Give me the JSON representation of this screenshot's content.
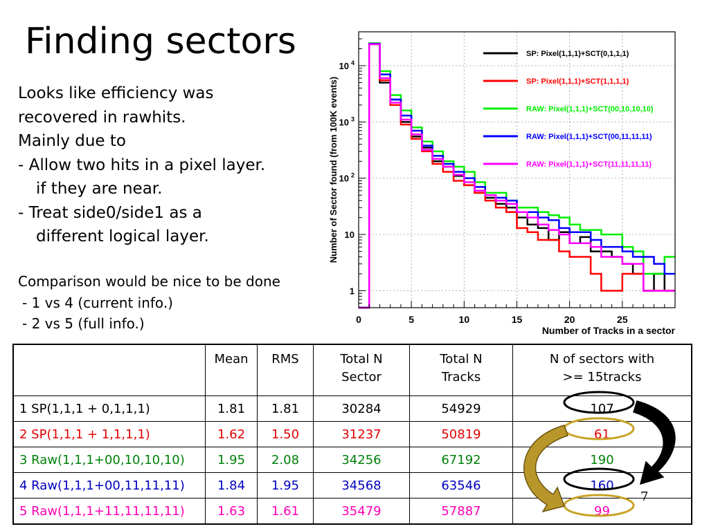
{
  "slide": {
    "title": "Finding sectors",
    "bullets": [
      "Looks like efficiency was",
      "recovered in rawhits.",
      "Mainly due to",
      "- Allow two hits in a pixel layer.",
      "if they are near.",
      "- Treat side0/side1 as a",
      "different logical layer."
    ],
    "comparison": [
      "Comparison would be nice to be done",
      "- 1 vs 4 (current info.)",
      "- 2 vs 5 (full info.)"
    ],
    "page_number": "7"
  },
  "chart_data": {
    "type": "line",
    "xlabel": "Number of Tracks in a sector",
    "ylabel": "Number of Sector found (from 100K events)",
    "xlim": [
      0,
      30
    ],
    "ylim_log": [
      0.5,
      40000
    ],
    "log_y": true,
    "grid": true,
    "xticks": [
      "0",
      "5",
      "10",
      "15",
      "20",
      "25"
    ],
    "yticks": [
      {
        "value": 1,
        "label": "1"
      },
      {
        "value": 10,
        "label": "10"
      },
      {
        "value": 100,
        "label": "10",
        "sup": "2"
      },
      {
        "value": 1000,
        "label": "10",
        "sup": "3"
      },
      {
        "value": 10000,
        "label": "10",
        "sup": "4"
      }
    ],
    "legend_position": "top-right",
    "series": [
      {
        "name": "SP: Pixel(1,1,1)+SCT(0,1,1,1)",
        "color": "#000000",
        "values": [
          0,
          25000,
          5000,
          2500,
          1000,
          550,
          350,
          200,
          160,
          110,
          75,
          55,
          45,
          35,
          30,
          20,
          15,
          13,
          8,
          11,
          7,
          9,
          5,
          5,
          4,
          3,
          2,
          1,
          2,
          1
        ]
      },
      {
        "name": "SP: Pixel(1,1,1)+SCT(1,1,1,1)",
        "color": "#ff0000",
        "values": [
          0,
          24000,
          5500,
          2000,
          900,
          500,
          300,
          180,
          130,
          90,
          75,
          55,
          40,
          30,
          25,
          13,
          11,
          8,
          8,
          5,
          4,
          4,
          2,
          1,
          1,
          2,
          2,
          1,
          1,
          1
        ]
      },
      {
        "name": "RAW: Pixel(1,1,1)+SCT(00,10,10,10)",
        "color": "#00ee00",
        "values": [
          0,
          25000,
          8000,
          3000,
          1600,
          800,
          450,
          300,
          200,
          160,
          130,
          85,
          55,
          55,
          40,
          30,
          30,
          25,
          22,
          20,
          15,
          12,
          12,
          10,
          10,
          6,
          5,
          2,
          2,
          4
        ]
      },
      {
        "name": "RAW: Pixel(1,1,1)+SCT(00,11,11,11)",
        "color": "#0000ff",
        "values": [
          0,
          24500,
          7000,
          2500,
          1300,
          700,
          380,
          250,
          180,
          130,
          100,
          70,
          50,
          45,
          40,
          25,
          25,
          20,
          18,
          13,
          11,
          11,
          8,
          6,
          6,
          5,
          4,
          4,
          3,
          2
        ]
      },
      {
        "name": "RAW: Pixel(1,1,1)+SCT(11,11,11,11)",
        "color": "#ff00ff",
        "values": [
          0,
          24000,
          6000,
          2200,
          1100,
          600,
          320,
          220,
          160,
          115,
          85,
          60,
          50,
          40,
          35,
          25,
          20,
          15,
          12,
          10,
          7,
          7,
          6,
          4,
          4,
          3,
          3,
          1,
          1,
          1
        ]
      }
    ]
  },
  "table": {
    "headers": [
      "",
      "Mean",
      "RMS",
      "Total N Sector",
      "Total N Tracks",
      "N of sectors with >= 15tracks"
    ],
    "header_lines": [
      [
        ""
      ],
      [
        "Mean"
      ],
      [
        "RMS"
      ],
      [
        "Total N",
        "Sector"
      ],
      [
        "Total N",
        "Tracks"
      ],
      [
        "N of sectors with",
        ">= 15tracks"
      ]
    ],
    "rows": [
      {
        "label": "1 SP(1,1,1 + 0,1,1,1)",
        "mean": "1.81",
        "rms": "1.81",
        "n_sector": "30284",
        "n_tracks": "54929",
        "n15": "107",
        "color": "#000000"
      },
      {
        "label": "2 SP(1,1,1 + 1,1,1,1)",
        "mean": "1.62",
        "rms": "1.50",
        "n_sector": "31237",
        "n_tracks": "50819",
        "n15": "61",
        "color": "#e00000"
      },
      {
        "label": "3 Raw(1,1,1+00,10,10,10)",
        "mean": "1.95",
        "rms": "2.08",
        "n_sector": "34256",
        "n_tracks": "67192",
        "n15": "190",
        "color": "#00800a"
      },
      {
        "label": "4 Raw(1,1,1+00,11,11,11)",
        "mean": "1.84",
        "rms": "1.95",
        "n_sector": "34568",
        "n_tracks": "63546",
        "n15": "160",
        "color": "#0000c0"
      },
      {
        "label": "5 Raw(1,1,1+11,11,11,11)",
        "mean": "1.63",
        "rms": "1.61",
        "n_sector": "35479",
        "n_tracks": "57887",
        "n15": "99",
        "color": "#ff00b4"
      }
    ]
  },
  "annotations": {
    "ellipse_colors": [
      "#000000",
      "#c9a227",
      "#000000",
      "#c9a227"
    ],
    "arrow_colors": [
      "#000000",
      "#b8962a"
    ]
  }
}
